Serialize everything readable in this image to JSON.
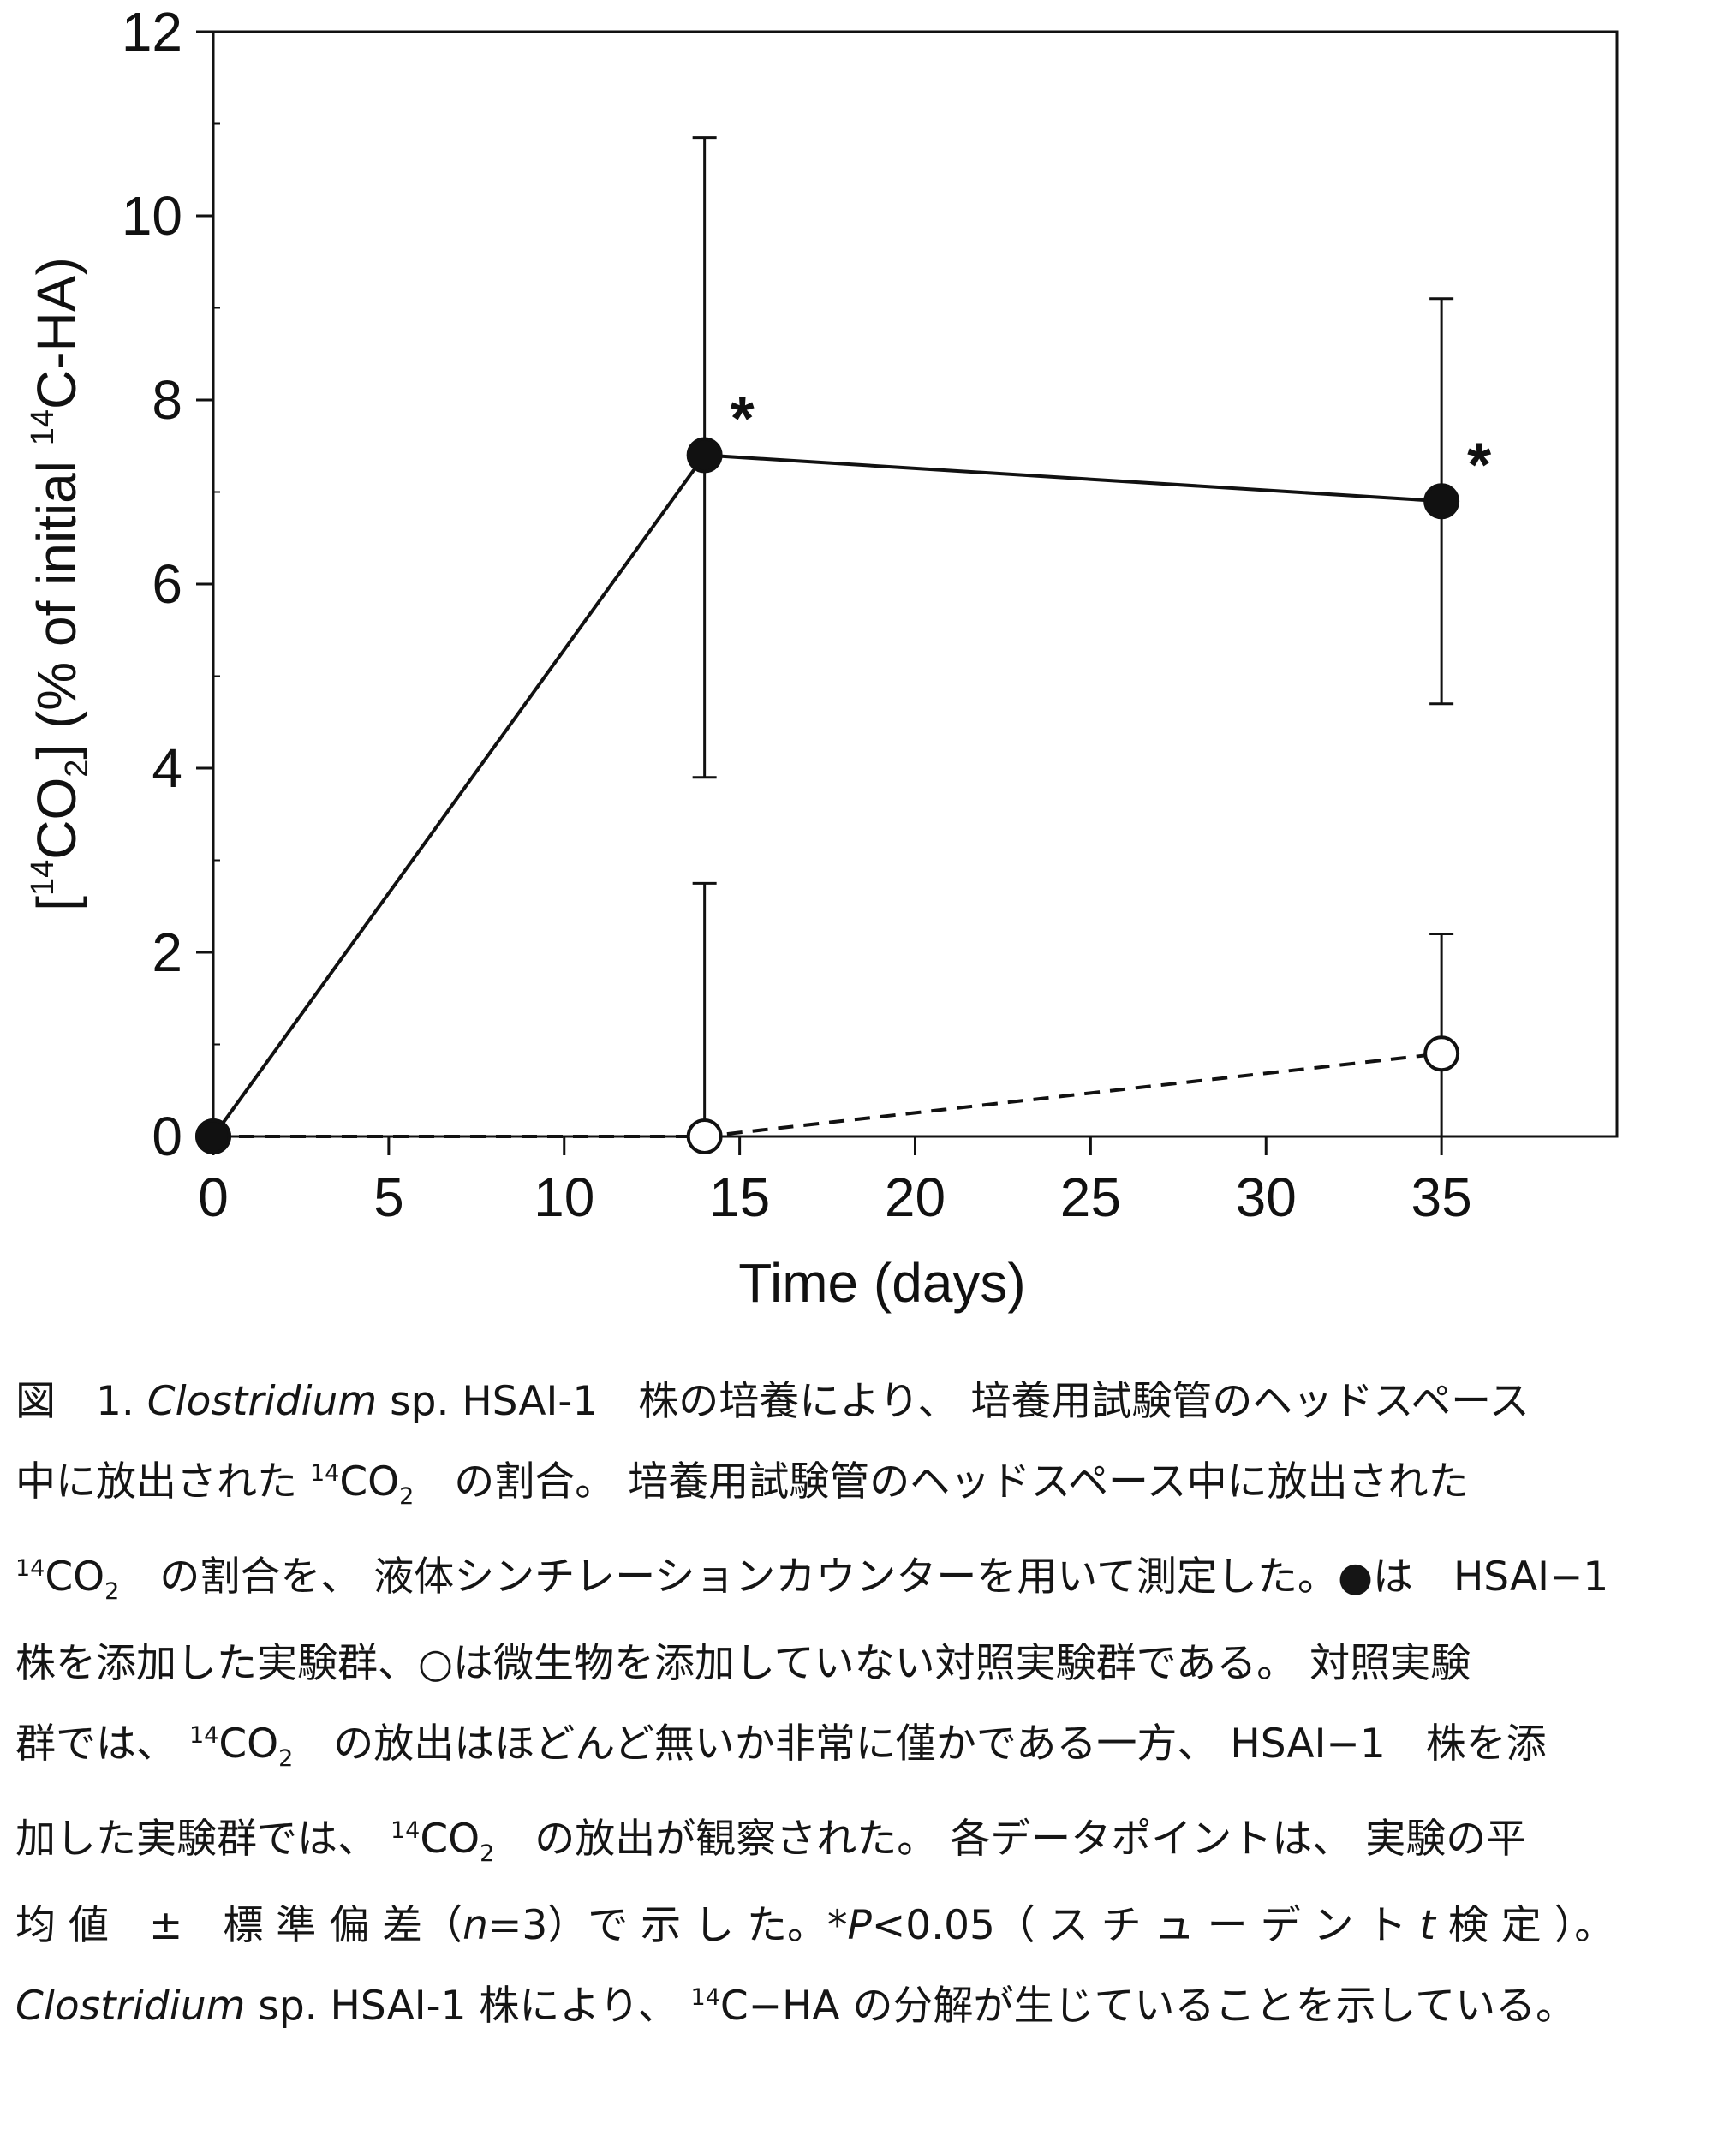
{
  "chart_data": {
    "type": "line",
    "xlabel": "Time (days)",
    "ylabel_parts": {
      "open": "[",
      "sup1": "14",
      "co": "CO",
      "sub": "2",
      "mid": "] (% of initial ",
      "sup2": "14",
      "tail": "C-HA)"
    },
    "xlim": [
      0,
      40
    ],
    "ylim": [
      0,
      12
    ],
    "xticks": [
      0,
      5,
      10,
      15,
      20,
      25,
      30,
      35
    ],
    "yticks": [
      0,
      2,
      4,
      6,
      8,
      10,
      12
    ],
    "grid": false,
    "legend": "none",
    "series": [
      {
        "marker": "filled-circle",
        "line": "solid",
        "x": [
          0,
          14,
          35
        ],
        "y": [
          0,
          7.4,
          6.9
        ],
        "err_upper": [
          0,
          10.85,
          9.1
        ],
        "err_lower": [
          0,
          3.9,
          4.7
        ],
        "significance": [
          "",
          "*",
          "*"
        ]
      },
      {
        "marker": "open-circle",
        "line": "dashed",
        "x": [
          0,
          14,
          35
        ],
        "y": [
          0,
          0,
          0.9
        ],
        "err_upper": [
          0,
          2.75,
          2.2
        ],
        "err_lower": [
          0,
          0,
          0
        ]
      }
    ]
  },
  "caption": {
    "l1": {
      "a": "図　1. ",
      "italic": "Clostridium",
      "b": " sp. HSAI-1　株の培養により、 培養用試験管のヘッドスペース"
    },
    "l2": {
      "a": "中に放出された ",
      "sup": "14",
      "co": "CO",
      "sub": "2",
      "b": "　の割合。 培養用試験管のヘッドスペース中に放出された"
    },
    "l3": {
      "sup": "14",
      "co": "CO",
      "sub": "2",
      "b": "　の割合を、 液体シンチレーションカウンターを用いて測定した。●は　HSAI−1"
    },
    "l4": "株を添加した実験群、○は微生物を添加していない対照実験群である。 対照実験",
    "l5": {
      "a": "群では、 ",
      "sup": "14",
      "co": "CO",
      "sub": "2",
      "b": "　の放出はほどんど無いか非常に僅かである一方、 HSAI−1　株を添"
    },
    "l6": {
      "a": "加した実験群では、 ",
      "sup": "14",
      "co": "CO",
      "sub": "2",
      "b": "　の放出が観察された。 各データポイントは、 実験の平"
    },
    "l7": {
      "a": "均 値　±　標 準 偏 差（",
      "n": "n",
      "b": "=3）で 示 し た。*",
      "p": "P",
      "c": "<0.05（ ス チ ュ ー デ ン ト ",
      "t": "t",
      "d": " 検 定 ）。"
    },
    "l8": {
      "italic": "Clostridium",
      "a": " sp. HSAI-1 株により、 ",
      "sup": "14",
      "b": "C−HA の分解が生じていることを示している。"
    }
  }
}
